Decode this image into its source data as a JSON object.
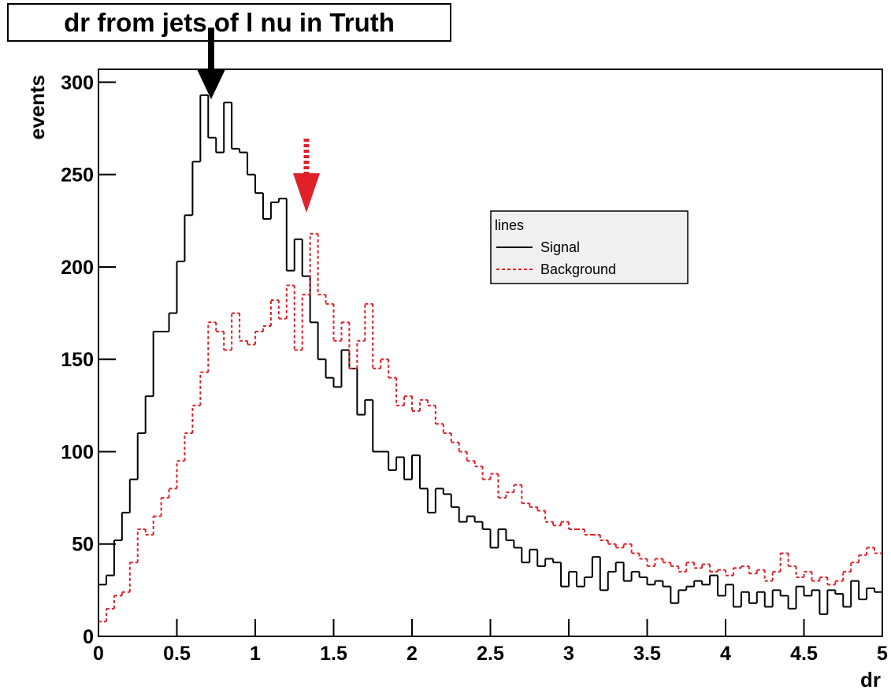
{
  "chart_data": {
    "type": "histogram",
    "title": "dr from jets of l nu in Truth",
    "xlabel": "dr",
    "ylabel": "events",
    "legend_title": "lines",
    "bins": [
      0,
      0.05,
      0.1,
      0.15,
      0.2,
      0.25,
      0.3,
      0.35,
      0.4,
      0.45,
      0.5,
      0.55,
      0.6,
      0.65,
      0.7,
      0.75,
      0.8,
      0.85,
      0.9,
      0.95,
      1,
      1.05,
      1.1,
      1.15,
      1.2,
      1.25,
      1.3,
      1.35,
      1.4,
      1.45,
      1.5,
      1.55,
      1.6,
      1.65,
      1.7,
      1.75,
      1.8,
      1.85,
      1.9,
      1.95,
      2,
      2.05,
      2.1,
      2.15,
      2.2,
      2.25,
      2.3,
      2.35,
      2.4,
      2.45,
      2.5,
      2.55,
      2.6,
      2.65,
      2.7,
      2.75,
      2.8,
      2.85,
      2.9,
      2.95,
      3,
      3.05,
      3.1,
      3.15,
      3.2,
      3.25,
      3.3,
      3.35,
      3.4,
      3.45,
      3.5,
      3.55,
      3.6,
      3.65,
      3.7,
      3.75,
      3.8,
      3.85,
      3.9,
      3.95,
      4,
      4.05,
      4.1,
      4.15,
      4.2,
      4.25,
      4.3,
      4.35,
      4.4,
      4.45,
      4.5,
      4.55,
      4.6,
      4.65,
      4.7,
      4.75,
      4.8,
      4.85,
      4.9,
      4.95,
      5
    ],
    "series": [
      {
        "name": "Signal",
        "color": "#000000",
        "dash": false,
        "values": [
          28,
          33,
          52,
          67,
          85,
          110,
          130,
          165,
          165,
          175,
          203,
          228,
          257,
          293,
          270,
          262,
          289,
          264,
          262,
          250,
          240,
          226,
          235,
          237,
          198,
          215,
          195,
          170,
          150,
          140,
          135,
          155,
          145,
          120,
          128,
          100,
          100,
          90,
          97,
          85,
          98,
          80,
          67,
          80,
          77,
          70,
          62,
          65,
          62,
          58,
          48,
          58,
          52,
          48,
          40,
          47,
          38,
          42,
          40,
          27,
          35,
          27,
          32,
          43,
          25,
          35,
          40,
          30,
          35,
          32,
          28,
          30,
          27,
          18,
          25,
          27,
          30,
          28,
          33,
          22,
          28,
          16,
          24,
          18,
          24,
          16,
          25,
          22,
          15,
          27,
          22,
          25,
          12,
          25,
          23,
          16,
          30,
          20,
          26,
          24
        ]
      },
      {
        "name": "Background",
        "color": "#e0202a",
        "dash": true,
        "values": [
          8,
          15,
          22,
          24,
          40,
          58,
          55,
          65,
          75,
          80,
          95,
          110,
          125,
          143,
          170,
          165,
          155,
          175,
          160,
          158,
          165,
          168,
          182,
          172,
          190,
          155,
          185,
          218,
          185,
          180,
          160,
          170,
          145,
          160,
          180,
          145,
          150,
          140,
          125,
          130,
          122,
          128,
          125,
          115,
          110,
          105,
          100,
          95,
          92,
          85,
          88,
          75,
          78,
          82,
          72,
          70,
          68,
          62,
          60,
          62,
          58,
          58,
          55,
          55,
          52,
          50,
          48,
          50,
          45,
          42,
          38,
          42,
          40,
          38,
          35,
          40,
          37,
          39,
          35,
          36,
          33,
          37,
          38,
          34,
          36,
          30,
          35,
          45,
          38,
          32,
          35,
          30,
          32,
          28,
          30,
          35,
          40,
          44,
          48,
          45
        ]
      }
    ],
    "xlim": [
      0,
      5
    ],
    "xticks": [
      0,
      0.5,
      1,
      1.5,
      2,
      2.5,
      3,
      3.5,
      4,
      4.5,
      5
    ],
    "ylim": [
      0,
      307
    ],
    "yticks": [
      0,
      50,
      100,
      150,
      200,
      250,
      300
    ]
  }
}
